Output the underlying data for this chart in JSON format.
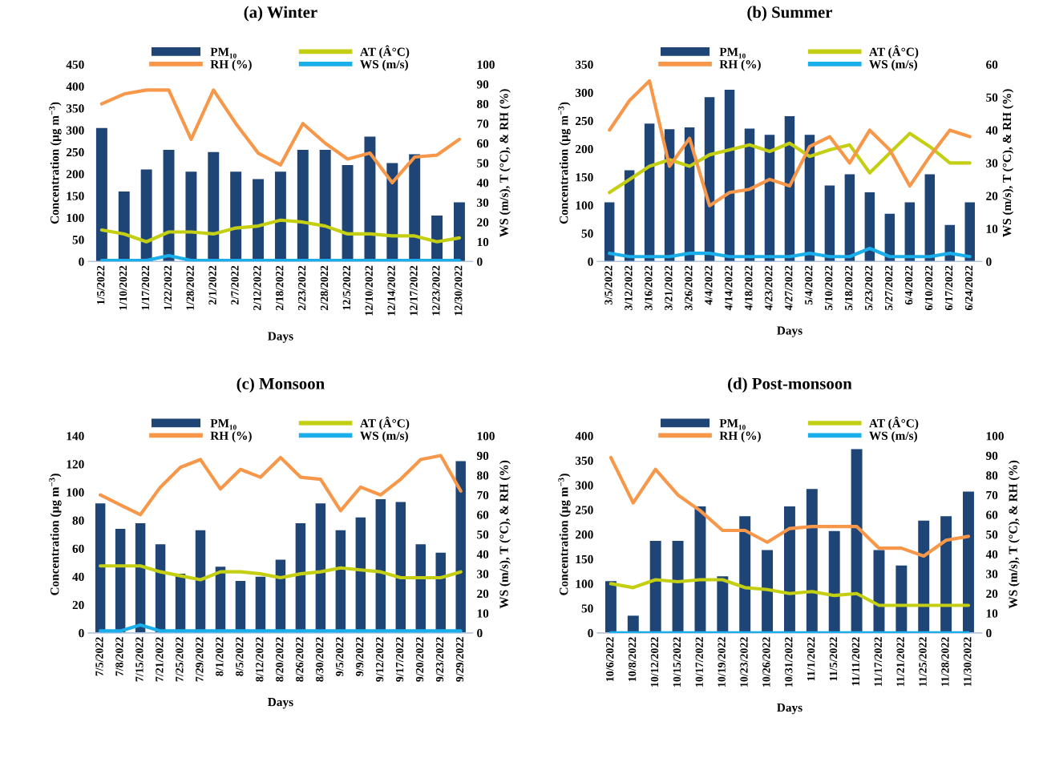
{
  "chart_data": [
    {
      "type": "bar",
      "title": "(a) Winter",
      "xlabel": "Days",
      "ylabel": "Concentration (μg m$^{−3}$)",
      "y2label": "WS (m/s), T (°C), & RH (%)",
      "legend": "top",
      "grid": false,
      "marker": "none",
      "categories": [
        "1/5/2022",
        "1/10/2022",
        "1/17/2022",
        "1/22/2022",
        "1/28/2022",
        "2/1/2022",
        "2/7/2022",
        "2/12/2022",
        "2/18/2022",
        "2/23/2022",
        "2/28/2022",
        "12/5/2022",
        "12/10/2022",
        "12/14/2022",
        "12/17/2022",
        "12/23/2022",
        "12/30/2022"
      ],
      "ylim": [
        0,
        450
      ],
      "yticks": [
        0,
        50,
        100,
        150,
        200,
        250,
        300,
        350,
        400,
        450
      ],
      "y2lim": [
        0,
        100
      ],
      "y2ticks": [
        0,
        10,
        20,
        30,
        40,
        50,
        60,
        70,
        80,
        90,
        100
      ],
      "series": [
        {
          "name": "PM₁₀",
          "color": "#1f4576",
          "values": [
            305,
            160,
            210,
            255,
            205,
            250,
            205,
            188,
            205,
            255,
            255,
            220,
            285,
            225,
            245,
            105,
            135
          ]
        },
        {
          "name": "AT (Â°C)",
          "color": "#c4cf14",
          "type": "line",
          "axis": "y2",
          "values": [
            16,
            14,
            10,
            15,
            15,
            14,
            17,
            18,
            21,
            20,
            18,
            14,
            14,
            13,
            13,
            10,
            12
          ]
        },
        {
          "name": "RH (%)",
          "color": "#f6974a",
          "type": "line",
          "axis": "y2",
          "values": [
            80,
            85,
            87,
            87,
            62,
            87,
            70,
            55,
            49,
            70,
            60,
            52,
            55,
            40,
            53,
            54,
            62
          ]
        },
        {
          "name": "WS (m/s)",
          "color": "#1aaeea",
          "type": "line",
          "axis": "y2",
          "values": [
            0.5,
            0.5,
            0.5,
            3,
            0.5,
            0.5,
            0.5,
            0.5,
            0.5,
            0.5,
            0.5,
            0.5,
            0.5,
            0.5,
            0.5,
            0.5,
            0.5
          ]
        }
      ]
    },
    {
      "type": "bar",
      "title": "(b) Summer",
      "xlabel": "Days",
      "ylabel": "Concentration (μg m$^{−3}$)",
      "y2label": "WS (m/s), T (°C), & RH (%)",
      "legend": "top",
      "grid": false,
      "marker": "none",
      "categories": [
        "3/5/2022",
        "3/12/2022",
        "3/16/2022",
        "3/21/2022",
        "3/26/2022",
        "4/4/2022",
        "4/14/2022",
        "4/18/2022",
        "4/23/2022",
        "4/27/2022",
        "5/4/2022",
        "5/10/2022",
        "5/18/2022",
        "5/23/2022",
        "5/27/2022",
        "6/4/2022",
        "6/10/2022",
        "6/17/2022",
        "6/24/2022"
      ],
      "ylim": [
        0,
        350
      ],
      "yticks": [
        0,
        50,
        100,
        150,
        200,
        250,
        300,
        350
      ],
      "y2lim": [
        0,
        60
      ],
      "y2ticks": [
        0,
        10,
        20,
        30,
        40,
        50,
        60
      ],
      "series": [
        {
          "name": "PM₁₀",
          "color": "#1f4576",
          "values": [
            105,
            162,
            245,
            235,
            238,
            292,
            305,
            236,
            225,
            258,
            225,
            135,
            155,
            123,
            85,
            105,
            155,
            65,
            105
          ]
        },
        {
          "name": "AT (Â°C)",
          "color": "#c4cf14",
          "type": "line",
          "axis": "y2",
          "values": [
            21,
            25,
            29,
            31,
            29,
            32.5,
            34,
            35.5,
            33.5,
            36,
            32,
            34,
            35.5,
            27,
            33,
            39,
            35,
            30,
            30
          ]
        },
        {
          "name": "RH (%)",
          "color": "#f6974a",
          "type": "line",
          "axis": "y2",
          "values": [
            40,
            49,
            55,
            29,
            37.5,
            17,
            21,
            22,
            25,
            23,
            35,
            38,
            30,
            40,
            34,
            23,
            32,
            40,
            38
          ]
        },
        {
          "name": "WS (m/s)",
          "color": "#1aaeea",
          "type": "line",
          "axis": "y2",
          "values": [
            2.5,
            1.5,
            1.5,
            1.5,
            2.5,
            2.5,
            1.5,
            1.5,
            1.5,
            1.5,
            2.5,
            1.5,
            1.5,
            4,
            1.5,
            1.5,
            1.5,
            2.5,
            1.5
          ]
        }
      ]
    },
    {
      "type": "bar",
      "title": "(c) Monsoon",
      "xlabel": "Days",
      "ylabel": "Concentration (μg m$^{−3}$)",
      "y2label": "WS (m/s), T (°C), & RH (%)",
      "legend": "top",
      "grid": false,
      "marker": "none",
      "categories": [
        "7/5/2022",
        "7/8/2022",
        "7/15/2022",
        "7/21/2022",
        "7/25/2022",
        "7/29/2022",
        "8/1/2022",
        "8/5/2022",
        "8/12/2022",
        "8/20/2022",
        "8/26/2022",
        "8/30/2022",
        "9/5/2022",
        "9/9/2022",
        "9/12/2022",
        "9/17/2022",
        "9/20/2022",
        "9/23/2022",
        "9/29/2022"
      ],
      "ylim": [
        0,
        140
      ],
      "yticks": [
        0,
        20,
        40,
        60,
        80,
        100,
        120,
        140
      ],
      "y2lim": [
        0,
        100
      ],
      "y2ticks": [
        0,
        10,
        20,
        30,
        40,
        50,
        60,
        70,
        80,
        90,
        100
      ],
      "series": [
        {
          "name": "PM₁₀",
          "color": "#1f4576",
          "values": [
            92,
            74,
            78,
            63,
            42,
            73,
            47,
            37,
            40,
            52,
            78,
            92,
            73,
            82,
            95,
            93,
            63,
            57,
            122
          ]
        },
        {
          "name": "AT (Â°C)",
          "color": "#c4cf14",
          "type": "line",
          "axis": "y2",
          "values": [
            34,
            34,
            34,
            31,
            29,
            27,
            31,
            31,
            30,
            28,
            30,
            31,
            33,
            32,
            31,
            28,
            28,
            28,
            31
          ]
        },
        {
          "name": "RH (%)",
          "color": "#f6974a",
          "type": "line",
          "axis": "y2",
          "values": [
            70,
            65,
            60,
            74,
            84,
            88,
            73,
            83,
            79,
            89,
            79,
            78,
            62,
            74,
            70,
            78,
            88,
            90,
            72
          ]
        },
        {
          "name": "WS (m/s)",
          "color": "#1aaeea",
          "type": "line",
          "axis": "y2",
          "values": [
            1,
            1,
            4,
            1,
            1,
            1,
            1,
            1,
            1,
            1,
            1,
            1,
            1,
            1,
            1,
            1,
            1,
            1,
            1
          ]
        }
      ]
    },
    {
      "type": "bar",
      "title": "(d) Post-monsoon",
      "xlabel": "Days",
      "ylabel": "Concentration (μg m$^{−3}$)",
      "y2label": "WS (m/s), T (°C), & RH (%)",
      "legend": "top",
      "grid": false,
      "marker": "none",
      "categories": [
        "10/6/2022",
        "10/8/2022",
        "10/12/2022",
        "10/15/2022",
        "10/17/2022",
        "10/19/2022",
        "10/23/2022",
        "10/26/2022",
        "10/31/2022",
        "11/1/2022",
        "11/5/2022",
        "11/11/2022",
        "11/17/2022",
        "11/21/2022",
        "11/25/2022",
        "11/28/2022",
        "11/30/2022"
      ],
      "ylim": [
        0,
        400
      ],
      "yticks": [
        0,
        50,
        100,
        150,
        200,
        250,
        300,
        350,
        400
      ],
      "y2lim": [
        0,
        100
      ],
      "y2ticks": [
        0,
        10,
        20,
        30,
        40,
        50,
        60,
        70,
        80,
        90,
        100
      ],
      "series": [
        {
          "name": "PM₁₀",
          "color": "#1f4576",
          "values": [
            105,
            35,
            187,
            187,
            257,
            115,
            237,
            168,
            257,
            292,
            207,
            373,
            168,
            137,
            228,
            237,
            287
          ]
        },
        {
          "name": "AT (Â°C)",
          "color": "#c4cf14",
          "type": "line",
          "axis": "y2",
          "values": [
            25,
            23,
            27,
            26,
            27,
            27,
            23,
            22,
            20,
            21,
            19,
            20,
            14,
            14,
            14,
            14,
            14
          ]
        },
        {
          "name": "RH (%)",
          "color": "#f6974a",
          "type": "line",
          "axis": "y2",
          "values": [
            89,
            66,
            83,
            70,
            62,
            52,
            52,
            46,
            53,
            54,
            54,
            54,
            43,
            43,
            39,
            47,
            49
          ]
        },
        {
          "name": "WS (m/s)",
          "color": "#1aaeea",
          "type": "line",
          "axis": "y2",
          "values": [
            0,
            0,
            0,
            0,
            0,
            0,
            0,
            0,
            0,
            0,
            0,
            0,
            0,
            0,
            0,
            0,
            0
          ]
        }
      ]
    }
  ]
}
